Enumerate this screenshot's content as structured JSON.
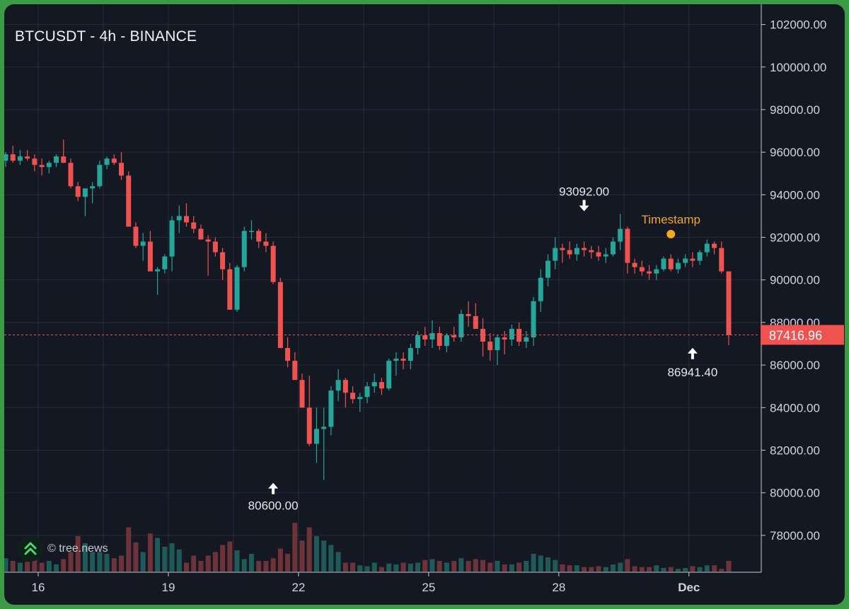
{
  "chart_data": {
    "type": "candlestick",
    "title": "BTCUSDT - 4h - BINANCE",
    "price_axis": {
      "ylim": [
        76800,
        102700
      ],
      "ticks": [
        "102000.00",
        "100000.00",
        "98000.00",
        "96000.00",
        "94000.00",
        "92000.00",
        "90000.00",
        "88000.00",
        "86000.00",
        "84000.00",
        "82000.00",
        "80000.00",
        "78000.00"
      ]
    },
    "time_axis": {
      "ticks": [
        {
          "label": "16",
          "bar": 4.5
        },
        {
          "label": "19",
          "bar": 22.5
        },
        {
          "label": "22",
          "bar": 40.5
        },
        {
          "label": "25",
          "bar": 58.5
        },
        {
          "label": "28",
          "bar": 76.5
        },
        {
          "label": "Dec",
          "bar": 94.5,
          "bold": true
        }
      ],
      "gridlines_at_bars": [
        4.5,
        13.5,
        22.5,
        31.5,
        40.5,
        49.5,
        58.5,
        67.5,
        76.5,
        85.5,
        94.5
      ]
    },
    "current_price": "87416.96",
    "current_price_value": 87416.96,
    "annotations": {
      "high": {
        "label": "93092.00",
        "bar": 80,
        "value": 93092
      },
      "low": {
        "label": "80600.00",
        "bar": 37,
        "value": 80600
      },
      "last_low": {
        "label": "86941.40",
        "bar": 95,
        "value": 86941.4
      },
      "timestamp": {
        "label": "Timestamp",
        "bar": 92
      }
    },
    "grid": true,
    "colors": {
      "up": "#26a69a",
      "down": "#ef5350",
      "up_volume": "#1e5a58",
      "down_volume": "#6e3338",
      "grid": "#262b38",
      "axis_text": "#d1d4dc",
      "timestamp": "#f5a623",
      "price_label_bg": "#ef5350"
    },
    "series": [
      {
        "name": "",
        "ohlcv": [
          [
            95600,
            96000,
            95300,
            95900,
            0.15
          ],
          [
            95900,
            96300,
            95500,
            95600,
            0.12
          ],
          [
            95600,
            96100,
            95400,
            95800,
            0.1
          ],
          [
            95800,
            96100,
            95600,
            95700,
            0.11
          ],
          [
            95700,
            95900,
            95100,
            95400,
            0.13
          ],
          [
            95400,
            95700,
            94900,
            95300,
            0.1
          ],
          [
            95300,
            95600,
            95000,
            95500,
            0.12
          ],
          [
            95500,
            95900,
            95300,
            95800,
            0.08
          ],
          [
            95800,
            96600,
            95500,
            95500,
            0.14
          ],
          [
            95500,
            95700,
            94300,
            94400,
            0.22
          ],
          [
            94400,
            94600,
            93700,
            93900,
            0.4
          ],
          [
            93900,
            94200,
            93000,
            94300,
            0.32
          ],
          [
            94300,
            94600,
            93600,
            94400,
            0.22
          ],
          [
            94400,
            95600,
            94300,
            95400,
            0.22
          ],
          [
            95400,
            95800,
            95200,
            95700,
            0.2
          ],
          [
            95700,
            95900,
            95400,
            95500,
            0.15
          ],
          [
            95500,
            96000,
            94700,
            94900,
            0.18
          ],
          [
            94900,
            95100,
            92600,
            92500,
            0.5
          ],
          [
            92500,
            92700,
            91500,
            91600,
            0.33
          ],
          [
            91600,
            92200,
            90900,
            91800,
            0.22
          ],
          [
            91800,
            92300,
            90600,
            90400,
            0.43
          ],
          [
            90400,
            90600,
            89300,
            90500,
            0.38
          ],
          [
            90500,
            91200,
            90300,
            91100,
            0.28
          ],
          [
            91100,
            93000,
            90400,
            92800,
            0.32
          ],
          [
            92800,
            93500,
            92200,
            93000,
            0.25
          ],
          [
            93000,
            93600,
            92500,
            92700,
            0.1
          ],
          [
            92700,
            93000,
            92200,
            92400,
            0.18
          ],
          [
            92400,
            92600,
            91900,
            91900,
            0.12
          ],
          [
            91900,
            92100,
            90200,
            91800,
            0.18
          ],
          [
            91800,
            92000,
            91100,
            91300,
            0.22
          ],
          [
            91300,
            91500,
            90000,
            90500,
            0.3
          ],
          [
            90500,
            90800,
            88600,
            88600,
            0.34
          ],
          [
            88600,
            90700,
            88500,
            90600,
            0.24
          ],
          [
            90600,
            92500,
            90400,
            92300,
            0.14
          ],
          [
            92300,
            92800,
            91900,
            92300,
            0.2
          ],
          [
            92300,
            92400,
            91500,
            91800,
            0.12
          ],
          [
            91800,
            92200,
            91300,
            91600,
            0.12
          ],
          [
            91600,
            91800,
            89800,
            89900,
            0.15
          ],
          [
            89900,
            90100,
            87800,
            86800,
            0.26
          ],
          [
            86800,
            87300,
            85900,
            86200,
            0.2
          ],
          [
            86200,
            86600,
            85500,
            85300,
            0.55
          ],
          [
            85300,
            85600,
            84000,
            84000,
            0.35
          ],
          [
            84000,
            85500,
            82200,
            82300,
            0.5
          ],
          [
            82300,
            84000,
            81400,
            83000,
            0.4
          ],
          [
            83000,
            84000,
            80600,
            83100,
            0.35
          ],
          [
            83100,
            85000,
            82700,
            84800,
            0.3
          ],
          [
            84800,
            85800,
            84300,
            85300,
            0.22
          ],
          [
            85300,
            85400,
            84000,
            84700,
            0.1
          ],
          [
            84700,
            85000,
            84200,
            84400,
            0.1
          ],
          [
            84400,
            84700,
            83800,
            84500,
            0.07
          ],
          [
            84500,
            85200,
            84200,
            85000,
            0.06
          ],
          [
            85000,
            85600,
            84700,
            85200,
            0.1
          ],
          [
            85200,
            85400,
            84600,
            84900,
            0.05
          ],
          [
            84900,
            86300,
            84800,
            86200,
            0.09
          ],
          [
            86200,
            86600,
            85500,
            86300,
            0.08
          ],
          [
            86300,
            86600,
            85800,
            86200,
            0.1
          ],
          [
            86200,
            87000,
            85800,
            86800,
            0.09
          ],
          [
            86800,
            87600,
            86500,
            87400,
            0.1
          ],
          [
            87400,
            87800,
            86900,
            87200,
            0.13
          ],
          [
            87200,
            88100,
            86800,
            87500,
            0.14
          ],
          [
            87500,
            87800,
            86700,
            86900,
            0.12
          ],
          [
            86900,
            87500,
            86600,
            87400,
            0.1
          ],
          [
            87400,
            87800,
            87100,
            87300,
            0.12
          ],
          [
            87300,
            88600,
            87100,
            88400,
            0.15
          ],
          [
            88400,
            89000,
            87800,
            88300,
            0.12
          ],
          [
            88300,
            88900,
            87700,
            87700,
            0.14
          ],
          [
            87700,
            88200,
            86400,
            87100,
            0.13
          ],
          [
            87100,
            87500,
            86200,
            86700,
            0.1
          ],
          [
            86700,
            87400,
            86000,
            87300,
            0.12
          ],
          [
            87300,
            87600,
            86500,
            87200,
            0.08
          ],
          [
            87200,
            87900,
            86900,
            87700,
            0.08
          ],
          [
            87700,
            88000,
            86900,
            87100,
            0.1
          ],
          [
            87100,
            87600,
            86800,
            87300,
            0.12
          ],
          [
            87300,
            89200,
            86900,
            89000,
            0.2
          ],
          [
            89000,
            90500,
            88500,
            90100,
            0.18
          ],
          [
            90100,
            91200,
            89700,
            90900,
            0.16
          ],
          [
            90900,
            92000,
            90500,
            91500,
            0.13
          ],
          [
            91500,
            91700,
            90800,
            91400,
            0.08
          ],
          [
            91400,
            91800,
            91000,
            91200,
            0.07
          ],
          [
            91200,
            91700,
            90900,
            91500,
            0.07
          ],
          [
            91500,
            91800,
            91100,
            91400,
            0.05
          ],
          [
            91400,
            91600,
            91000,
            91300,
            0.05
          ],
          [
            91300,
            91600,
            90900,
            91100,
            0.06
          ],
          [
            91100,
            91500,
            90800,
            91200,
            0.05
          ],
          [
            91200,
            92000,
            91100,
            91800,
            0.08
          ],
          [
            91800,
            93092,
            91400,
            92400,
            0.1
          ],
          [
            92400,
            92500,
            90300,
            90800,
            0.14
          ],
          [
            90800,
            91000,
            90300,
            90600,
            0.06
          ],
          [
            90600,
            90900,
            90200,
            90400,
            0.05
          ],
          [
            90400,
            90700,
            90000,
            90300,
            0.05
          ],
          [
            90300,
            90700,
            90000,
            90500,
            0.07
          ],
          [
            90500,
            91100,
            90400,
            91000,
            0.04
          ],
          [
            91000,
            91200,
            90400,
            90500,
            0.05
          ],
          [
            90500,
            91000,
            90300,
            90800,
            0.03
          ],
          [
            90800,
            91200,
            90600,
            91000,
            0.04
          ],
          [
            91000,
            91300,
            90600,
            90900,
            0.06
          ],
          [
            90900,
            91400,
            90700,
            91300,
            0.05
          ],
          [
            91300,
            91900,
            91100,
            91700,
            0.07
          ],
          [
            91700,
            91800,
            91200,
            91500,
            0.07
          ],
          [
            91500,
            91800,
            90300,
            90400,
            0.03
          ],
          [
            90400,
            90400,
            86941.4,
            87416.96,
            0.12
          ]
        ]
      }
    ]
  },
  "watermark": {
    "text": "© tree.news",
    "icon": "double-chevron-up-icon"
  }
}
